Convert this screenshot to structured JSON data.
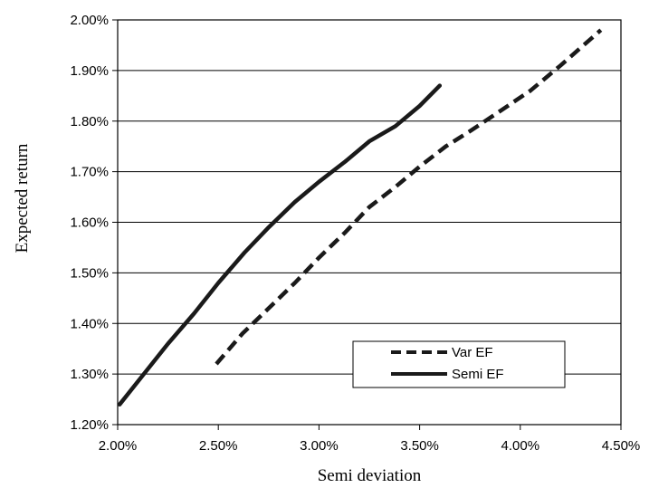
{
  "chart_data": {
    "type": "line",
    "title": "",
    "xlabel": "Semi deviation",
    "ylabel": "Expected return",
    "xlim": [
      0.02,
      0.045
    ],
    "ylim": [
      0.012,
      0.02
    ],
    "xticks": [
      {
        "value": 0.02,
        "label": "2.00%"
      },
      {
        "value": 0.025,
        "label": "2.50%"
      },
      {
        "value": 0.03,
        "label": "3.00%"
      },
      {
        "value": 0.035,
        "label": "3.50%"
      },
      {
        "value": 0.04,
        "label": "4.00%"
      },
      {
        "value": 0.045,
        "label": "4.50%"
      }
    ],
    "yticks": [
      {
        "value": 0.012,
        "label": "1.20%"
      },
      {
        "value": 0.013,
        "label": "1.30%"
      },
      {
        "value": 0.014,
        "label": "1.40%"
      },
      {
        "value": 0.015,
        "label": "1.50%"
      },
      {
        "value": 0.016,
        "label": "1.60%"
      },
      {
        "value": 0.017,
        "label": "1.70%"
      },
      {
        "value": 0.018,
        "label": "1.80%"
      },
      {
        "value": 0.019,
        "label": "1.90%"
      },
      {
        "value": 0.02,
        "label": "2.00%"
      }
    ],
    "grid": "horizontal",
    "legend_position": "bottom-right",
    "series": [
      {
        "name": "Var EF",
        "style": "dashed",
        "color": "#1a1a1a",
        "x": [
          0.0249,
          0.0262,
          0.0275,
          0.0288,
          0.03,
          0.0313,
          0.0325,
          0.0338,
          0.035,
          0.0363,
          0.0375,
          0.039,
          0.0405,
          0.042,
          0.044
        ],
        "y": [
          0.0132,
          0.0138,
          0.0143,
          0.0148,
          0.0153,
          0.0158,
          0.0163,
          0.0167,
          0.0171,
          0.0175,
          0.0178,
          0.0182,
          0.0186,
          0.0191,
          0.0198
        ]
      },
      {
        "name": "Semi EF",
        "style": "solid",
        "color": "#1a1a1a",
        "x": [
          0.0201,
          0.0213,
          0.0225,
          0.0238,
          0.025,
          0.0263,
          0.0275,
          0.0288,
          0.03,
          0.0313,
          0.0325,
          0.0338,
          0.035,
          0.036
        ],
        "y": [
          0.0124,
          0.013,
          0.0136,
          0.0142,
          0.0148,
          0.0154,
          0.0159,
          0.0164,
          0.0168,
          0.0172,
          0.0176,
          0.0179,
          0.0183,
          0.0187
        ]
      }
    ]
  }
}
